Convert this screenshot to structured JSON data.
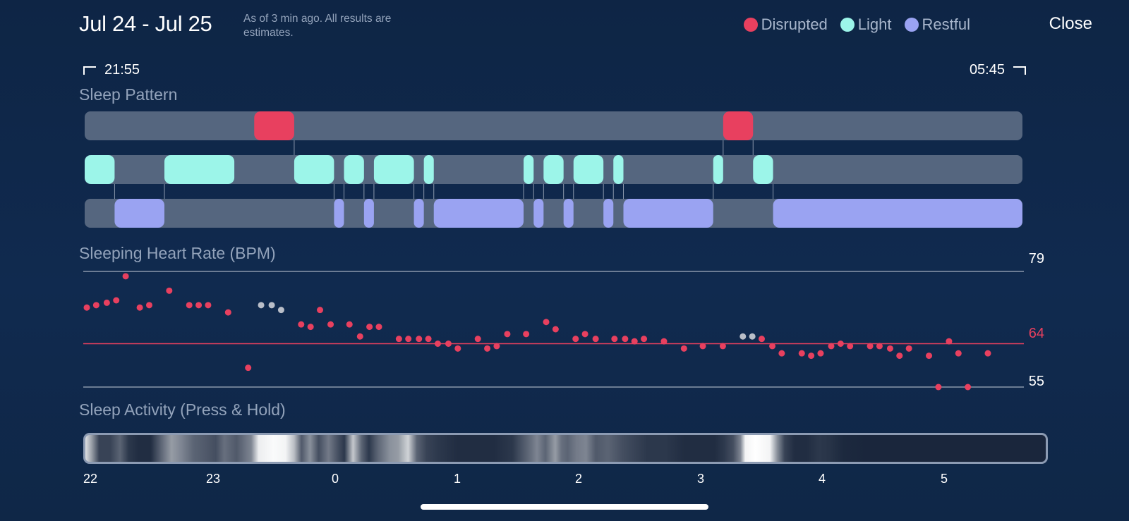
{
  "header": {
    "title": "Jul 24 - Jul 25",
    "subtitle": "As of 3 min ago. All results are estimates.",
    "close_label": "Close"
  },
  "legend": [
    {
      "label": "Disrupted",
      "color": "#e8405f"
    },
    {
      "label": "Light",
      "color": "#9cf5e9"
    },
    {
      "label": "Restful",
      "color": "#9aa3f2"
    }
  ],
  "time_range": {
    "start": "21:55",
    "end": "05:45"
  },
  "sleep_pattern": {
    "title": "Sleep Pattern",
    "start_hour": 21.917,
    "end_hour": 29.75,
    "rows": [
      {
        "stage": "Disrupted",
        "segments": [
          [
            23.333,
            23.667
          ],
          [
            27.25,
            27.5
          ]
        ]
      },
      {
        "stage": "Light",
        "segments": [
          [
            21.917,
            22.167
          ],
          [
            22.583,
            23.167
          ],
          [
            23.667,
            24.0
          ],
          [
            24.083,
            24.25
          ],
          [
            24.333,
            24.667
          ],
          [
            24.75,
            24.833
          ],
          [
            25.583,
            25.667
          ],
          [
            25.75,
            25.917
          ],
          [
            26.0,
            26.25
          ],
          [
            26.333,
            26.417
          ],
          [
            27.167,
            27.25
          ],
          [
            27.5,
            27.667
          ]
        ]
      },
      {
        "stage": "Restful",
        "segments": [
          [
            22.167,
            22.583
          ],
          [
            24.0,
            24.083
          ],
          [
            24.25,
            24.333
          ],
          [
            24.667,
            24.75
          ],
          [
            24.833,
            25.583
          ],
          [
            25.667,
            25.75
          ],
          [
            25.917,
            26.0
          ],
          [
            26.25,
            26.333
          ],
          [
            26.417,
            27.167
          ],
          [
            27.667,
            29.75
          ]
        ]
      }
    ]
  },
  "heart_rate": {
    "title": "Sleeping Heart Rate (BPM)",
    "max_label": "79",
    "avg_label": "64",
    "min_label": "55",
    "max": 79,
    "avg": 64,
    "min": 55,
    "points": [
      [
        21.95,
        71.5,
        "r"
      ],
      [
        22.03,
        72,
        "r"
      ],
      [
        22.12,
        72.5,
        "r"
      ],
      [
        22.2,
        73,
        "r"
      ],
      [
        22.28,
        78,
        "r"
      ],
      [
        22.4,
        71.5,
        "r"
      ],
      [
        22.48,
        72,
        "r"
      ],
      [
        22.65,
        75,
        "r"
      ],
      [
        22.82,
        72,
        "r"
      ],
      [
        22.9,
        72,
        "r"
      ],
      [
        22.98,
        72,
        "r"
      ],
      [
        23.15,
        70.5,
        "r"
      ],
      [
        23.32,
        59,
        "r"
      ],
      [
        23.43,
        72,
        "g"
      ],
      [
        23.52,
        72,
        "g"
      ],
      [
        23.6,
        71,
        "g"
      ],
      [
        23.77,
        68,
        "r"
      ],
      [
        23.85,
        67.5,
        "r"
      ],
      [
        23.93,
        71,
        "r"
      ],
      [
        24.02,
        68,
        "r"
      ],
      [
        24.18,
        68,
        "r"
      ],
      [
        24.27,
        65.5,
        "r"
      ],
      [
        24.35,
        67.5,
        "r"
      ],
      [
        24.43,
        67.5,
        "r"
      ],
      [
        24.6,
        65,
        "r"
      ],
      [
        24.68,
        65,
        "r"
      ],
      [
        24.77,
        65,
        "r"
      ],
      [
        24.85,
        65,
        "r"
      ],
      [
        24.93,
        64,
        "r"
      ],
      [
        25.02,
        64,
        "r"
      ],
      [
        25.1,
        63,
        "r"
      ],
      [
        25.27,
        65,
        "r"
      ],
      [
        25.35,
        63,
        "r"
      ],
      [
        25.43,
        63.5,
        "r"
      ],
      [
        25.52,
        66,
        "r"
      ],
      [
        25.68,
        66,
        "r"
      ],
      [
        25.85,
        68.5,
        "r"
      ],
      [
        25.93,
        67,
        "r"
      ],
      [
        26.1,
        65,
        "r"
      ],
      [
        26.18,
        66,
        "r"
      ],
      [
        26.27,
        65,
        "r"
      ],
      [
        26.43,
        65,
        "r"
      ],
      [
        26.52,
        65,
        "r"
      ],
      [
        26.6,
        64.5,
        "r"
      ],
      [
        26.68,
        65,
        "r"
      ],
      [
        26.85,
        64.5,
        "r"
      ],
      [
        27.02,
        63,
        "r"
      ],
      [
        27.18,
        63.5,
        "r"
      ],
      [
        27.35,
        63.5,
        "r"
      ],
      [
        27.52,
        65.5,
        "g"
      ],
      [
        27.6,
        65.5,
        "g"
      ],
      [
        27.68,
        65,
        "r"
      ],
      [
        27.77,
        63.5,
        "r"
      ],
      [
        27.85,
        62,
        "r"
      ],
      [
        28.02,
        62,
        "r"
      ],
      [
        28.1,
        61.5,
        "r"
      ],
      [
        28.18,
        62,
        "r"
      ],
      [
        28.27,
        63.5,
        "r"
      ],
      [
        28.35,
        64,
        "r"
      ],
      [
        28.43,
        63.5,
        "r"
      ],
      [
        28.6,
        63.5,
        "r"
      ],
      [
        28.68,
        63.5,
        "r"
      ],
      [
        28.77,
        63,
        "r"
      ],
      [
        28.85,
        61.5,
        "r"
      ],
      [
        28.93,
        63,
        "r"
      ],
      [
        29.1,
        61.5,
        "r"
      ],
      [
        29.18,
        55,
        "r"
      ],
      [
        29.27,
        64.5,
        "r"
      ],
      [
        29.35,
        62,
        "r"
      ],
      [
        29.43,
        55,
        "r"
      ],
      [
        29.6,
        62,
        "r"
      ]
    ]
  },
  "activity": {
    "title": "Sleep Activity (Press & Hold)",
    "bands": [
      [
        21.92,
        0.85
      ],
      [
        21.97,
        0.55
      ],
      [
        22.03,
        0.15
      ],
      [
        22.12,
        0.15
      ],
      [
        22.2,
        0.3
      ],
      [
        22.27,
        0.1
      ],
      [
        22.35,
        0.05
      ],
      [
        22.45,
        0.05
      ],
      [
        22.55,
        0.35
      ],
      [
        22.62,
        0.55
      ],
      [
        22.7,
        0.45
      ],
      [
        22.8,
        0.3
      ],
      [
        22.9,
        0.25
      ],
      [
        22.98,
        0.2
      ],
      [
        23.05,
        0.35
      ],
      [
        23.15,
        0.25
      ],
      [
        23.27,
        0.45
      ],
      [
        23.33,
        0.92
      ],
      [
        23.45,
        0.98
      ],
      [
        23.55,
        0.95
      ],
      [
        23.62,
        0.7
      ],
      [
        23.68,
        0.25
      ],
      [
        23.75,
        0.5
      ],
      [
        23.82,
        0.2
      ],
      [
        23.9,
        0.4
      ],
      [
        23.98,
        0.2
      ],
      [
        24.03,
        0.1
      ],
      [
        24.1,
        0.75
      ],
      [
        24.17,
        0.3
      ],
      [
        24.23,
        0.1
      ],
      [
        24.3,
        0.3
      ],
      [
        24.4,
        0.5
      ],
      [
        24.47,
        0.55
      ],
      [
        24.55,
        0.8
      ],
      [
        24.62,
        0.3
      ],
      [
        24.7,
        0.15
      ],
      [
        24.8,
        0.1
      ],
      [
        24.95,
        0.05
      ],
      [
        25.1,
        0.05
      ],
      [
        25.25,
        0.05
      ],
      [
        25.4,
        0.1
      ],
      [
        25.55,
        0.35
      ],
      [
        25.6,
        0.45
      ],
      [
        25.67,
        0.3
      ],
      [
        25.75,
        0.55
      ],
      [
        25.8,
        0.35
      ],
      [
        25.85,
        0.3
      ],
      [
        25.92,
        0.4
      ],
      [
        26.0,
        0.45
      ],
      [
        26.08,
        0.25
      ],
      [
        26.18,
        0.3
      ],
      [
        26.3,
        0.2
      ],
      [
        26.4,
        0.15
      ],
      [
        26.5,
        0.1
      ],
      [
        26.65,
        0.1
      ],
      [
        26.8,
        0.05
      ],
      [
        26.95,
        0.05
      ],
      [
        27.05,
        0.05
      ],
      [
        27.12,
        0.1
      ],
      [
        27.2,
        0.2
      ],
      [
        27.26,
        0.45
      ],
      [
        27.3,
        0.95
      ],
      [
        27.38,
        1.0
      ],
      [
        27.5,
        0.95
      ],
      [
        27.56,
        0.5
      ],
      [
        27.62,
        0.15
      ],
      [
        27.7,
        0.05
      ],
      [
        27.8,
        0.05
      ],
      [
        27.9,
        0.1
      ],
      [
        27.98,
        0.08
      ],
      [
        28.1,
        0.03
      ],
      [
        28.3,
        0.02
      ],
      [
        28.6,
        0.02
      ],
      [
        28.9,
        0.02
      ],
      [
        29.2,
        0.02
      ],
      [
        29.5,
        0.02
      ],
      [
        29.75,
        0.02
      ]
    ],
    "ticks": [
      "22",
      "23",
      "0",
      "1",
      "2",
      "3",
      "4",
      "5"
    ]
  }
}
